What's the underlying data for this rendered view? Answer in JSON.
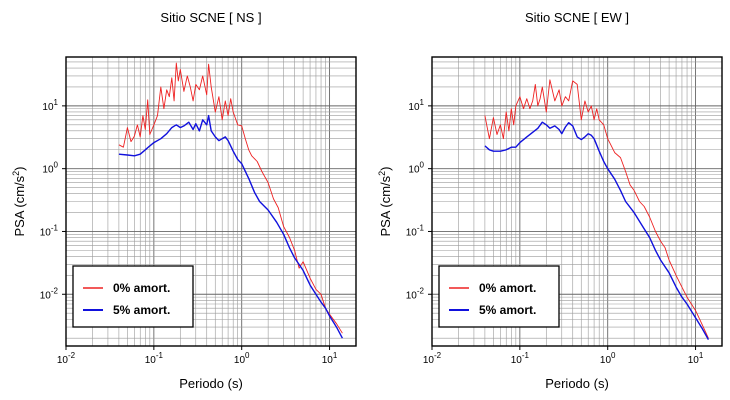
{
  "charts": [
    {
      "id": "ns",
      "title": "Sitio SCNE [ NS ]",
      "xlabel": "Periodo (s)",
      "ylabel_base": "PSA (cm/s",
      "ylabel_sup": "2",
      "ylabel_close": ")",
      "x_ticks": [
        {
          "base": "10",
          "exp": "-2"
        },
        {
          "base": "10",
          "exp": "-1"
        },
        {
          "base": "10",
          "exp": "0"
        },
        {
          "base": "10",
          "exp": "1"
        }
      ],
      "y_ticks": [
        {
          "base": "10",
          "exp": "-2"
        },
        {
          "base": "10",
          "exp": "-1"
        },
        {
          "base": "10",
          "exp": "0"
        },
        {
          "base": "10",
          "exp": "1"
        }
      ],
      "legend": [
        {
          "label": "0% amort.",
          "color": "#ee2222"
        },
        {
          "label": "5% amort.",
          "color": "#1111dd"
        }
      ]
    },
    {
      "id": "ew",
      "title": "Sitio SCNE [ EW ]",
      "xlabel": "Periodo (s)",
      "ylabel_base": "PSA (cm/s",
      "ylabel_sup": "2",
      "ylabel_close": ")",
      "x_ticks": [
        {
          "base": "10",
          "exp": "-2"
        },
        {
          "base": "10",
          "exp": "-1"
        },
        {
          "base": "10",
          "exp": "0"
        },
        {
          "base": "10",
          "exp": "1"
        }
      ],
      "y_ticks": [
        {
          "base": "10",
          "exp": "-2"
        },
        {
          "base": "10",
          "exp": "-1"
        },
        {
          "base": "10",
          "exp": "0"
        },
        {
          "base": "10",
          "exp": "1"
        }
      ],
      "legend": [
        {
          "label": "0% amort.",
          "color": "#ee2222"
        },
        {
          "label": "5% amort.",
          "color": "#1111dd"
        }
      ]
    }
  ],
  "chart_data": [
    {
      "type": "line",
      "title": "Sitio SCNE [ NS ]",
      "xlabel": "Periodo (s)",
      "ylabel": "PSA (cm/s2)",
      "x_scale": "log",
      "y_scale": "log",
      "xlim": [
        0.01,
        20
      ],
      "ylim": [
        0.0015,
        60
      ],
      "grid": true,
      "legend_position": "bottom-left",
      "series": [
        {
          "name": "0% amort.",
          "color": "#ee2222",
          "x": [
            0.04,
            0.045,
            0.05,
            0.055,
            0.06,
            0.065,
            0.07,
            0.075,
            0.08,
            0.085,
            0.09,
            0.1,
            0.11,
            0.12,
            0.13,
            0.14,
            0.15,
            0.16,
            0.17,
            0.18,
            0.19,
            0.2,
            0.22,
            0.24,
            0.26,
            0.28,
            0.3,
            0.33,
            0.36,
            0.4,
            0.42,
            0.45,
            0.5,
            0.55,
            0.6,
            0.65,
            0.7,
            0.75,
            0.8,
            0.9,
            1.0,
            1.1,
            1.2,
            1.3,
            1.5,
            1.7,
            2.0,
            2.3,
            2.6,
            3.0,
            3.5,
            4.0,
            4.5,
            5.0,
            6.0,
            7.0,
            8.0,
            9.0,
            10.0,
            12.0,
            14.0
          ],
          "y": [
            2.4,
            2.2,
            4.5,
            2.7,
            3.3,
            5.0,
            3.2,
            7.0,
            4.2,
            12.5,
            3.5,
            5.0,
            7.0,
            20.0,
            9.0,
            18.0,
            14.0,
            28.0,
            12.0,
            48.0,
            25.0,
            38.0,
            17.0,
            30.0,
            20.0,
            12.0,
            22.0,
            18.0,
            30.0,
            15.0,
            46.0,
            20.0,
            8.0,
            14.0,
            6.0,
            12.0,
            7.0,
            13.0,
            8.0,
            5.0,
            4.8,
            3.0,
            2.0,
            1.6,
            1.3,
            0.9,
            0.6,
            0.33,
            0.24,
            0.12,
            0.08,
            0.05,
            0.026,
            0.033,
            0.018,
            0.012,
            0.01,
            0.006,
            0.0048,
            0.0034,
            0.0024
          ]
        },
        {
          "name": "5% amort.",
          "color": "#1111dd",
          "x": [
            0.04,
            0.05,
            0.06,
            0.07,
            0.08,
            0.09,
            0.1,
            0.12,
            0.14,
            0.16,
            0.18,
            0.2,
            0.22,
            0.25,
            0.28,
            0.3,
            0.33,
            0.36,
            0.4,
            0.42,
            0.45,
            0.5,
            0.55,
            0.6,
            0.65,
            0.7,
            0.8,
            0.9,
            1.0,
            1.2,
            1.4,
            1.6,
            2.0,
            2.5,
            3.0,
            3.5,
            4.0,
            5.0,
            6.0,
            7.0,
            8.0,
            9.0,
            10.0,
            12.0,
            14.0
          ],
          "y": [
            1.7,
            1.65,
            1.6,
            1.7,
            2.0,
            2.3,
            2.6,
            3.0,
            3.6,
            4.5,
            5.0,
            4.5,
            4.8,
            5.5,
            4.2,
            5.2,
            4.0,
            6.0,
            5.0,
            7.0,
            4.0,
            3.2,
            2.8,
            3.0,
            3.2,
            2.8,
            1.9,
            1.4,
            1.2,
            0.7,
            0.42,
            0.3,
            0.22,
            0.14,
            0.09,
            0.055,
            0.038,
            0.024,
            0.014,
            0.01,
            0.0075,
            0.006,
            0.0045,
            0.003,
            0.002
          ]
        }
      ]
    },
    {
      "type": "line",
      "title": "Sitio SCNE [ EW ]",
      "xlabel": "Periodo (s)",
      "ylabel": "PSA (cm/s2)",
      "x_scale": "log",
      "y_scale": "log",
      "xlim": [
        0.01,
        20
      ],
      "ylim": [
        0.0015,
        60
      ],
      "grid": true,
      "legend_position": "bottom-left",
      "series": [
        {
          "name": "0% amort.",
          "color": "#ee2222",
          "x": [
            0.04,
            0.045,
            0.05,
            0.055,
            0.06,
            0.065,
            0.07,
            0.075,
            0.08,
            0.085,
            0.09,
            0.1,
            0.11,
            0.12,
            0.13,
            0.14,
            0.15,
            0.16,
            0.17,
            0.18,
            0.2,
            0.22,
            0.25,
            0.28,
            0.3,
            0.33,
            0.36,
            0.4,
            0.45,
            0.5,
            0.55,
            0.6,
            0.65,
            0.7,
            0.75,
            0.8,
            0.9,
            1.0,
            1.2,
            1.4,
            1.6,
            1.8,
            2.0,
            2.3,
            2.6,
            3.0,
            3.5,
            4.0,
            4.5,
            5.0,
            6.0,
            7.0,
            8.0,
            10.0,
            12.0,
            14.0
          ],
          "y": [
            7.0,
            3.0,
            6.5,
            3.5,
            5.0,
            3.0,
            8.0,
            4.0,
            9.0,
            5.0,
            10.0,
            14.0,
            9.0,
            13.0,
            9.0,
            12.0,
            22.0,
            10.0,
            13.0,
            20.0,
            8.0,
            26.0,
            12.0,
            18.0,
            10.0,
            14.0,
            12.0,
            25.0,
            22.0,
            6.0,
            12.0,
            8.0,
            10.0,
            6.0,
            9.0,
            6.0,
            5.0,
            3.0,
            1.8,
            1.5,
            0.9,
            0.55,
            0.45,
            0.3,
            0.25,
            0.17,
            0.1,
            0.07,
            0.055,
            0.035,
            0.02,
            0.013,
            0.009,
            0.0055,
            0.0032,
            0.002
          ]
        },
        {
          "name": "5% amort.",
          "color": "#1111dd",
          "x": [
            0.04,
            0.045,
            0.05,
            0.06,
            0.07,
            0.08,
            0.09,
            0.1,
            0.12,
            0.14,
            0.16,
            0.18,
            0.2,
            0.22,
            0.25,
            0.28,
            0.3,
            0.33,
            0.36,
            0.4,
            0.45,
            0.5,
            0.55,
            0.6,
            0.65,
            0.7,
            0.8,
            0.9,
            1.0,
            1.2,
            1.4,
            1.6,
            2.0,
            2.5,
            3.0,
            3.5,
            4.0,
            5.0,
            6.0,
            7.0,
            8.0,
            10.0,
            12.0,
            14.0
          ],
          "y": [
            2.3,
            2.0,
            1.9,
            1.9,
            2.0,
            2.2,
            2.2,
            2.6,
            3.2,
            3.8,
            4.4,
            5.5,
            5.0,
            4.4,
            4.8,
            4.2,
            3.6,
            4.6,
            5.4,
            4.8,
            3.2,
            2.9,
            3.2,
            3.6,
            3.4,
            3.0,
            1.9,
            1.3,
            1.0,
            0.68,
            0.45,
            0.3,
            0.2,
            0.12,
            0.08,
            0.05,
            0.035,
            0.022,
            0.013,
            0.009,
            0.007,
            0.0042,
            0.0028,
            0.0019
          ]
        }
      ]
    }
  ]
}
